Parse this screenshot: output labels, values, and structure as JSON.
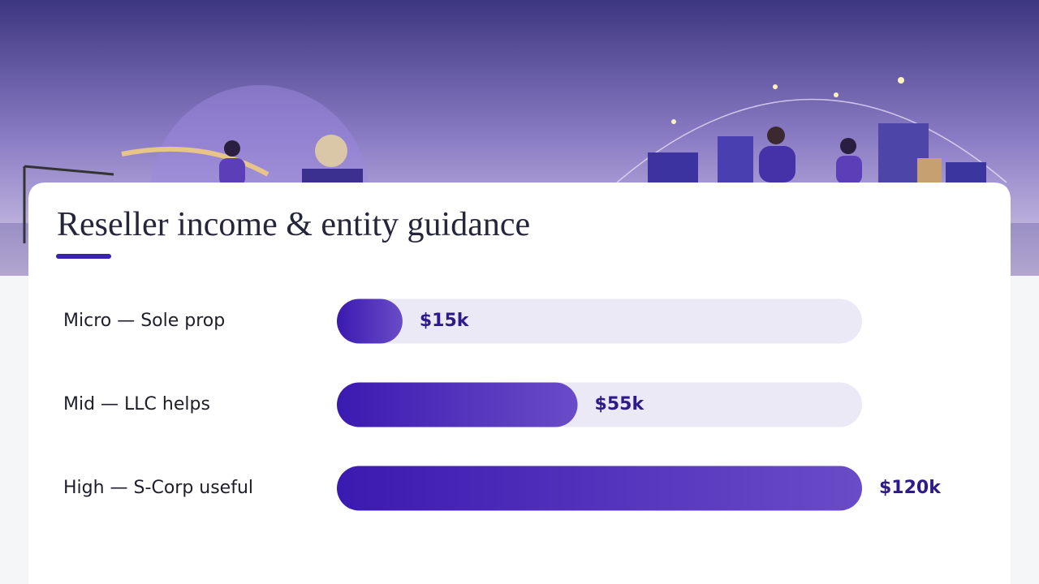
{
  "chart_data": {
    "type": "bar",
    "orientation": "horizontal",
    "title": "Reseller income & entity guidance",
    "categories": [
      "Micro — Sole prop",
      "Mid — LLC helps",
      "High — S-Corp useful"
    ],
    "values": [
      15000,
      55000,
      120000
    ],
    "value_labels": [
      "$15k",
      "$55k",
      "$120k"
    ],
    "xlim": [
      0,
      120000
    ],
    "color": "#3a1ab0"
  }
}
